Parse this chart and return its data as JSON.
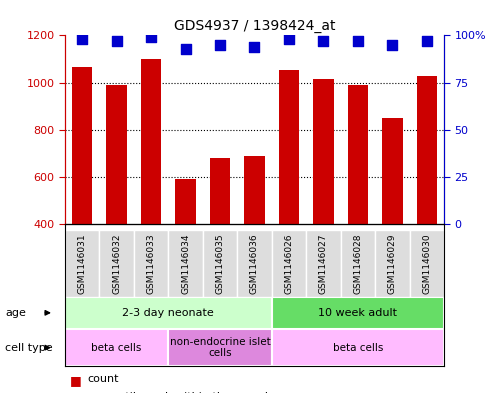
{
  "title": "GDS4937 / 1398424_at",
  "samples": [
    "GSM1146031",
    "GSM1146032",
    "GSM1146033",
    "GSM1146034",
    "GSM1146035",
    "GSM1146036",
    "GSM1146026",
    "GSM1146027",
    "GSM1146028",
    "GSM1146029",
    "GSM1146030"
  ],
  "counts": [
    1065,
    988,
    1100,
    590,
    678,
    690,
    1055,
    1015,
    990,
    848,
    1028
  ],
  "percentiles": [
    98,
    97,
    99,
    93,
    95,
    94,
    98,
    97,
    97,
    95,
    97
  ],
  "bar_color": "#cc0000",
  "dot_color": "#0000cc",
  "ylim_left": [
    400,
    1200
  ],
  "ylim_right": [
    0,
    100
  ],
  "yticks_left": [
    400,
    600,
    800,
    1000,
    1200
  ],
  "yticks_right": [
    0,
    25,
    50,
    75,
    100
  ],
  "ytick_right_labels": [
    "0",
    "25",
    "50",
    "75",
    "100%"
  ],
  "grid_lines": [
    600,
    800,
    1000
  ],
  "age_groups": [
    {
      "label": "2-3 day neonate",
      "start": 0,
      "end": 6,
      "color": "#ccffcc"
    },
    {
      "label": "10 week adult",
      "start": 6,
      "end": 11,
      "color": "#66dd66"
    }
  ],
  "cell_type_groups": [
    {
      "label": "beta cells",
      "start": 0,
      "end": 3,
      "color": "#ffbbff"
    },
    {
      "label": "non-endocrine islet\ncells",
      "start": 3,
      "end": 6,
      "color": "#dd88dd"
    },
    {
      "label": "beta cells",
      "start": 6,
      "end": 11,
      "color": "#ffbbff"
    }
  ],
  "bar_color_legend": "#cc0000",
  "dot_color_legend": "#0000cc",
  "tick_color_left": "#cc0000",
  "tick_color_right": "#0000cc",
  "bar_width": 0.6,
  "dot_size": 55,
  "sample_label_bg": "#dddddd"
}
